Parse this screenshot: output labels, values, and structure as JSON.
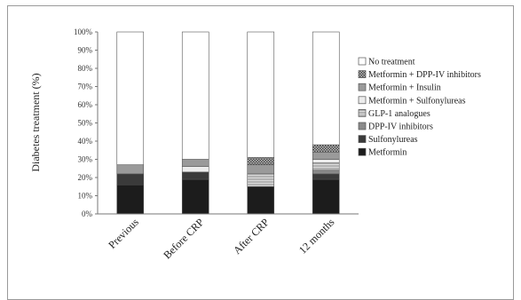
{
  "chart_data": {
    "type": "bar",
    "stacked": true,
    "ylabel": "Diabetes treatment (%)",
    "xlabel": "",
    "ylim": [
      0,
      100
    ],
    "yticks": [
      "0%",
      "10%",
      "20%",
      "30%",
      "40%",
      "50%",
      "60%",
      "70%",
      "80%",
      "90%",
      "100%"
    ],
    "categories": [
      "Previous",
      "Before CRP",
      "After CRP",
      "12 months"
    ],
    "legend_position": "right",
    "series": [
      {
        "name": "Metformin",
        "values": [
          16,
          19,
          15,
          19
        ],
        "color": "#1c1c1c",
        "pattern": "solid"
      },
      {
        "name": "Sulfonylureas",
        "values": [
          6,
          4,
          0,
          3
        ],
        "color": "#3a3a3a",
        "pattern": "solid"
      },
      {
        "name": "DPP-IV inhibitors",
        "values": [
          0,
          0,
          0,
          2
        ],
        "color": "#8a8a8a",
        "pattern": "solid"
      },
      {
        "name": "GLP-1 analogues",
        "values": [
          0,
          0,
          7,
          4
        ],
        "color": "#c8c8c8",
        "pattern": "hlines"
      },
      {
        "name": "Metformin + Sulfonylureas",
        "values": [
          0,
          3,
          0,
          2
        ],
        "color": "#ececec",
        "pattern": "solid"
      },
      {
        "name": "Metformin + Insulin",
        "values": [
          5,
          4,
          5,
          4
        ],
        "color": "#9a9a9a",
        "pattern": "solid"
      },
      {
        "name": "Metformin + DPP-IV inhibitors",
        "values": [
          0,
          0,
          4,
          4
        ],
        "color": "#6a6a6a",
        "pattern": "checker"
      },
      {
        "name": "No treatment",
        "values": [
          73,
          70,
          69,
          62
        ],
        "color": "#ffffff",
        "pattern": "solid"
      }
    ]
  }
}
